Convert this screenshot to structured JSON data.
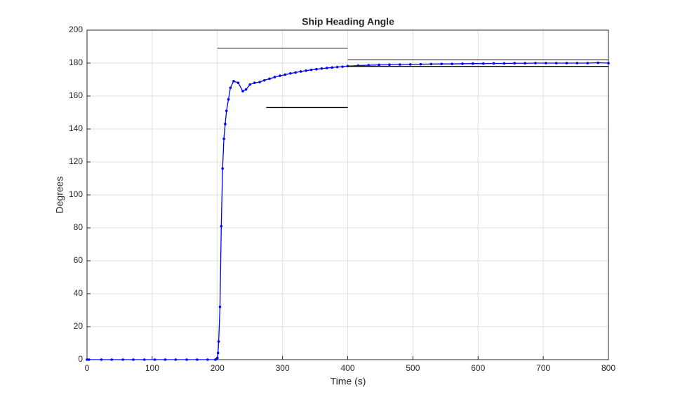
{
  "chart_data": {
    "type": "line",
    "title": "Ship Heading Angle",
    "xlabel": "Time (s)",
    "ylabel": "Degrees",
    "xlim": [
      0,
      800
    ],
    "ylim": [
      0,
      200
    ],
    "xticks": [
      0,
      100,
      200,
      300,
      400,
      500,
      600,
      700,
      800
    ],
    "yticks": [
      0,
      20,
      40,
      60,
      80,
      100,
      120,
      140,
      160,
      180,
      200
    ],
    "grid": true,
    "series": [
      {
        "color": "#0000ff",
        "marker": "dot",
        "x": [
          0,
          3,
          22,
          38,
          55,
          71,
          88,
          104,
          120,
          136,
          153,
          169,
          185,
          197,
          199,
          200,
          201,
          202,
          204,
          206,
          208,
          210,
          212,
          214,
          217,
          220,
          225,
          232,
          239,
          244,
          250,
          257,
          265,
          272,
          280,
          288,
          296,
          304,
          312,
          320,
          328,
          336,
          344,
          352,
          360,
          368,
          376,
          384,
          392,
          400,
          416,
          432,
          448,
          464,
          480,
          496,
          512,
          528,
          544,
          560,
          576,
          592,
          608,
          624,
          640,
          656,
          672,
          688,
          704,
          720,
          736,
          752,
          768,
          784,
          800
        ],
        "values": [
          0,
          0,
          0,
          0,
          0,
          0,
          0,
          0,
          0,
          0,
          0,
          0,
          0,
          0,
          0.5,
          1,
          4,
          11,
          32,
          81,
          116,
          134,
          143,
          151,
          158,
          165,
          169,
          168,
          163,
          164,
          167,
          168,
          168.5,
          169.5,
          170.5,
          171.5,
          172.3,
          173,
          173.7,
          174.3,
          174.9,
          175.4,
          175.9,
          176.3,
          176.7,
          177,
          177.3,
          177.6,
          177.8,
          178.2,
          178.5,
          178.7,
          178.9,
          179,
          179.1,
          179.2,
          179.3,
          179.4,
          179.5,
          179.5,
          179.6,
          179.7,
          179.7,
          179.8,
          179.8,
          179.9,
          179.9,
          180,
          180,
          180,
          180,
          180,
          180,
          180.2,
          180
        ]
      },
      {
        "color": "#555555",
        "x": [
          200,
          400
        ],
        "values": [
          189,
          189
        ]
      },
      {
        "color": "#000000",
        "x": [
          275,
          400
        ],
        "values": [
          153,
          153
        ]
      },
      {
        "color": "#555555",
        "x": [
          400,
          800
        ],
        "values": [
          182,
          182
        ]
      },
      {
        "color": "#000000",
        "x": [
          400,
          800
        ],
        "values": [
          178,
          178
        ]
      }
    ]
  }
}
